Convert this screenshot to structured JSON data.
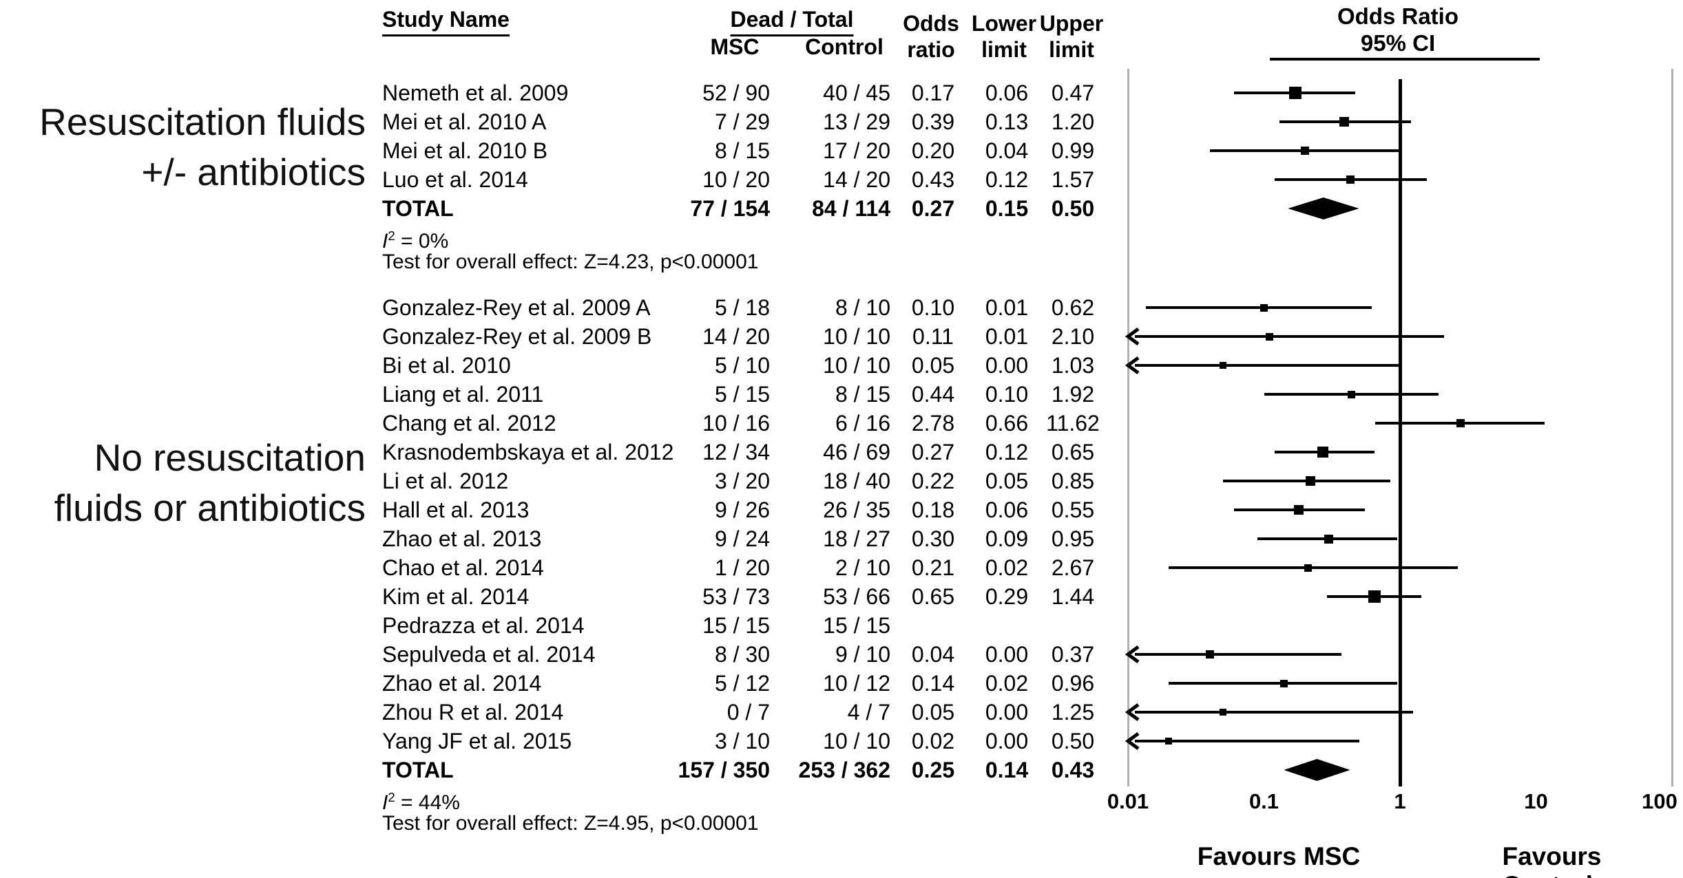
{
  "chart_data": {
    "type": "forest",
    "plot_title": "Odds Ratio",
    "plot_subtitle": "95% CI",
    "header": {
      "study_name": "Study Name",
      "dead_total": "Dead / Total",
      "msc": "MSC",
      "control": "Control",
      "odds_line1": "Odds",
      "odds_line2": "ratio",
      "lower_line1": "Lower",
      "lower_line2": "limit",
      "upper_line1": "Upper",
      "upper_line2": "limit"
    },
    "axis": {
      "scale": "log",
      "min": 0.01,
      "max": 100,
      "reference_value": 1,
      "ticks": [
        {
          "label": "0.01",
          "value": 0.01
        },
        {
          "label": "0.1",
          "value": 0.1
        },
        {
          "label": "1",
          "value": 1
        },
        {
          "label": "10",
          "value": 10
        },
        {
          "label": "100",
          "value": 100
        }
      ]
    },
    "footer": {
      "favours_left": "Favours MSC",
      "favours_right": "Favours Control"
    },
    "colors": {
      "marker": "#000000",
      "gridline": "#b0b0b0",
      "text": "#000000"
    },
    "groups": [
      {
        "label_lines": [
          "Resuscitation fluids",
          "+/- antibiotics"
        ],
        "studies": [
          {
            "name": "Nemeth et al. 2009",
            "msc": "52 / 90",
            "control": "40 / 45",
            "odds_ratio": "0.17",
            "lower": "0.06",
            "upper": "0.47",
            "arrow": false
          },
          {
            "name": "Mei et al. 2010 A",
            "msc": "7 / 29",
            "control": "13 / 29",
            "odds_ratio": "0.39",
            "lower": "0.13",
            "upper": "1.20",
            "arrow": false
          },
          {
            "name": "Mei et al. 2010 B",
            "msc": "8 / 15",
            "control": "17 / 20",
            "odds_ratio": "0.20",
            "lower": "0.04",
            "upper": "0.99",
            "arrow": false
          },
          {
            "name": "Luo et al. 2014",
            "msc": "10 / 20",
            "control": "14 / 20",
            "odds_ratio": "0.43",
            "lower": "0.12",
            "upper": "1.57",
            "arrow": false
          }
        ],
        "total": {
          "name": "TOTAL",
          "msc": "77 / 154",
          "control": "84 / 114",
          "odds_ratio": "0.27",
          "lower": "0.15",
          "upper": "0.50"
        },
        "heterogeneity_i2": "0%",
        "overall_effect_test": "Test for overall effect: Z=4.23, p<0.00001"
      },
      {
        "label_lines": [
          "No resuscitation",
          "fluids or antibiotics"
        ],
        "studies": [
          {
            "name": "Gonzalez-Rey et al. 2009 A",
            "msc": "5 / 18",
            "control": "8 / 10",
            "odds_ratio": "0.10",
            "lower": "0.01",
            "upper": "0.62",
            "arrow": false
          },
          {
            "name": "Gonzalez-Rey et al. 2009 B",
            "msc": "14 / 20",
            "control": "10 / 10",
            "odds_ratio": "0.11",
            "lower": "0.01",
            "upper": "2.10",
            "arrow": true
          },
          {
            "name": "Bi et al. 2010",
            "msc": "5 / 10",
            "control": "10 / 10",
            "odds_ratio": "0.05",
            "lower": "0.00",
            "upper": "1.03",
            "arrow": true
          },
          {
            "name": "Liang et al. 2011",
            "msc": "5 / 15",
            "control": "8 / 15",
            "odds_ratio": "0.44",
            "lower": "0.10",
            "upper": "1.92",
            "arrow": false
          },
          {
            "name": "Chang et al. 2012",
            "msc": "10 / 16",
            "control": "6 / 16",
            "odds_ratio": "2.78",
            "lower": "0.66",
            "upper": "11.62",
            "arrow": false
          },
          {
            "name": "Krasnodembskaya et al. 2012",
            "msc": "12 / 34",
            "control": "46 / 69",
            "odds_ratio": "0.27",
            "lower": "0.12",
            "upper": "0.65",
            "arrow": false
          },
          {
            "name": "Li et al. 2012",
            "msc": "3 / 20",
            "control": "18 / 40",
            "odds_ratio": "0.22",
            "lower": "0.05",
            "upper": "0.85",
            "arrow": false
          },
          {
            "name": "Hall et al. 2013",
            "msc": "9 / 26",
            "control": "26 / 35",
            "odds_ratio": "0.18",
            "lower": "0.06",
            "upper": "0.55",
            "arrow": false
          },
          {
            "name": "Zhao et al. 2013",
            "msc": "9 / 24",
            "control": "18 / 27",
            "odds_ratio": "0.30",
            "lower": "0.09",
            "upper": "0.95",
            "arrow": false
          },
          {
            "name": "Chao et al. 2014",
            "msc": "1 / 20",
            "control": "2 / 10",
            "odds_ratio": "0.21",
            "lower": "0.02",
            "upper": "2.67",
            "arrow": false
          },
          {
            "name": "Kim et al. 2014",
            "msc": "53 / 73",
            "control": "53 / 66",
            "odds_ratio": "0.65",
            "lower": "0.29",
            "upper": "1.44",
            "arrow": false
          },
          {
            "name": "Pedrazza et al. 2014",
            "msc": "15 / 15",
            "control": "15 / 15",
            "odds_ratio": "",
            "lower": "",
            "upper": "",
            "arrow": false
          },
          {
            "name": "Sepulveda et al. 2014",
            "msc": "8 / 30",
            "control": "9 / 10",
            "odds_ratio": "0.04",
            "lower": "0.00",
            "upper": "0.37",
            "arrow": true
          },
          {
            "name": "Zhao et al. 2014",
            "msc": "5 / 12",
            "control": "10 / 12",
            "odds_ratio": "0.14",
            "lower": "0.02",
            "upper": "0.96",
            "arrow": false
          },
          {
            "name": "Zhou R et al. 2014",
            "msc": "0 / 7",
            "control": "4 / 7",
            "odds_ratio": "0.05",
            "lower": "0.00",
            "upper": "1.25",
            "arrow": true
          },
          {
            "name": "Yang JF et al. 2015",
            "msc": "3 / 10",
            "control": "10 / 10",
            "odds_ratio": "0.02",
            "lower": "0.00",
            "upper": "0.50",
            "arrow": true
          }
        ],
        "total": {
          "name": "TOTAL",
          "msc": "157 / 350",
          "control": "253 / 362",
          "odds_ratio": "0.25",
          "lower": "0.14",
          "upper": "0.43"
        },
        "heterogeneity_i2": "44%",
        "overall_effect_test": "Test for overall effect: Z=4.95, p<0.00001"
      }
    ]
  }
}
